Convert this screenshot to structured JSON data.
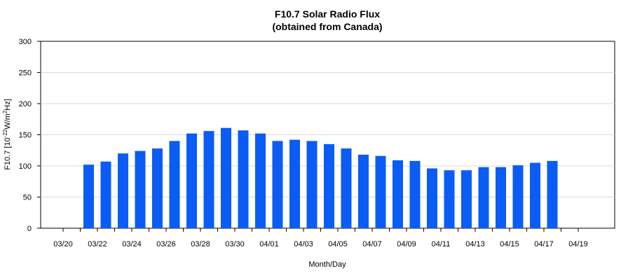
{
  "chart_data": {
    "type": "bar",
    "title": "F10.7 Solar Radio Flux",
    "subtitle": "(obtained from Canada)",
    "xlabel": "Month/Day",
    "ylabel": {
      "prefix": "F10.7 [10",
      "exp1": "-22",
      "middle": "W/m",
      "exp2": "2",
      "suffix": "Hz]"
    },
    "ylim": [
      0,
      300
    ],
    "yticks": [
      "0",
      "50",
      "100",
      "150",
      "200",
      "250",
      "300"
    ],
    "grid": true,
    "bar_color": "#0b5cf5",
    "categories": [
      "03/20",
      "03/21",
      "03/22",
      "03/23",
      "03/24",
      "03/25",
      "03/26",
      "03/27",
      "03/28",
      "03/29",
      "03/30",
      "03/31",
      "04/01",
      "04/02",
      "04/03",
      "04/04",
      "04/05",
      "04/06",
      "04/07",
      "04/08",
      "04/09",
      "04/10",
      "04/11",
      "04/12",
      "04/13",
      "04/14",
      "04/15",
      "04/16",
      "04/17",
      "04/18",
      "04/19"
    ],
    "xtick_labels": [
      "03/20",
      "03/22",
      "03/24",
      "03/26",
      "03/28",
      "03/30",
      "04/01",
      "04/03",
      "04/05",
      "04/07",
      "04/09",
      "04/11",
      "04/13",
      "04/15",
      "04/17",
      "04/19"
    ],
    "values": [
      null,
      102,
      107,
      120,
      124,
      128,
      140,
      152,
      156,
      161,
      157,
      152,
      140,
      142,
      140,
      135,
      128,
      118,
      116,
      109,
      108,
      96,
      93,
      93,
      98,
      98,
      101,
      105,
      108,
      null,
      null
    ]
  }
}
